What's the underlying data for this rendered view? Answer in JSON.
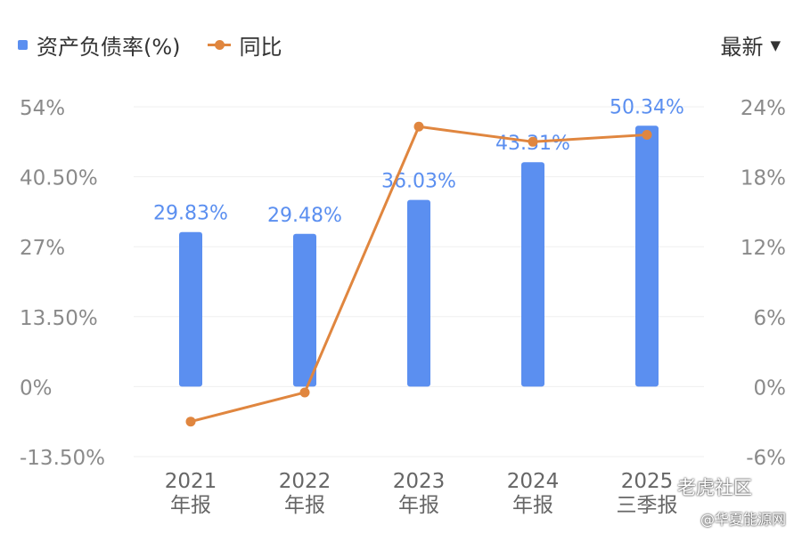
{
  "legend": {
    "bar_label": "资产负债率(%)",
    "line_label": "同比",
    "bar_color": "#5B8FF0",
    "line_color": "#E0863F"
  },
  "selector": {
    "label": "最新"
  },
  "watermarks": {
    "main": "老虎社区",
    "sub": "@华夏能源网"
  },
  "chart_data": {
    "type": "bar",
    "categories": [
      [
        "2021",
        "年报"
      ],
      [
        "2022",
        "年报"
      ],
      [
        "2023",
        "年报"
      ],
      [
        "2024",
        "年报"
      ],
      [
        "2025",
        "三季报"
      ]
    ],
    "series": [
      {
        "name": "资产负债率(%)",
        "type": "bar",
        "axis": "left",
        "values": [
          29.83,
          29.48,
          36.03,
          43.31,
          50.34
        ],
        "labels": [
          "29.83%",
          "29.48%",
          "36.03%",
          "43.31%",
          "50.34%"
        ]
      },
      {
        "name": "同比",
        "type": "line",
        "axis": "right",
        "values": [
          -3.0,
          -0.5,
          22.3,
          21.0,
          21.6
        ]
      }
    ],
    "y_left": {
      "range": [
        -13.5,
        54
      ],
      "ticks": [
        54,
        40.5,
        27,
        13.5,
        0,
        -13.5
      ],
      "tick_labels": [
        "54%",
        "40.50%",
        "27%",
        "13.50%",
        "0%",
        "-13.50%"
      ]
    },
    "y_right": {
      "range": [
        -6,
        24
      ],
      "ticks": [
        24,
        18,
        12,
        6,
        0,
        -6
      ],
      "tick_labels": [
        "24%",
        "18%",
        "12%",
        "6%",
        "0%",
        "-6%"
      ]
    },
    "grid": true
  }
}
